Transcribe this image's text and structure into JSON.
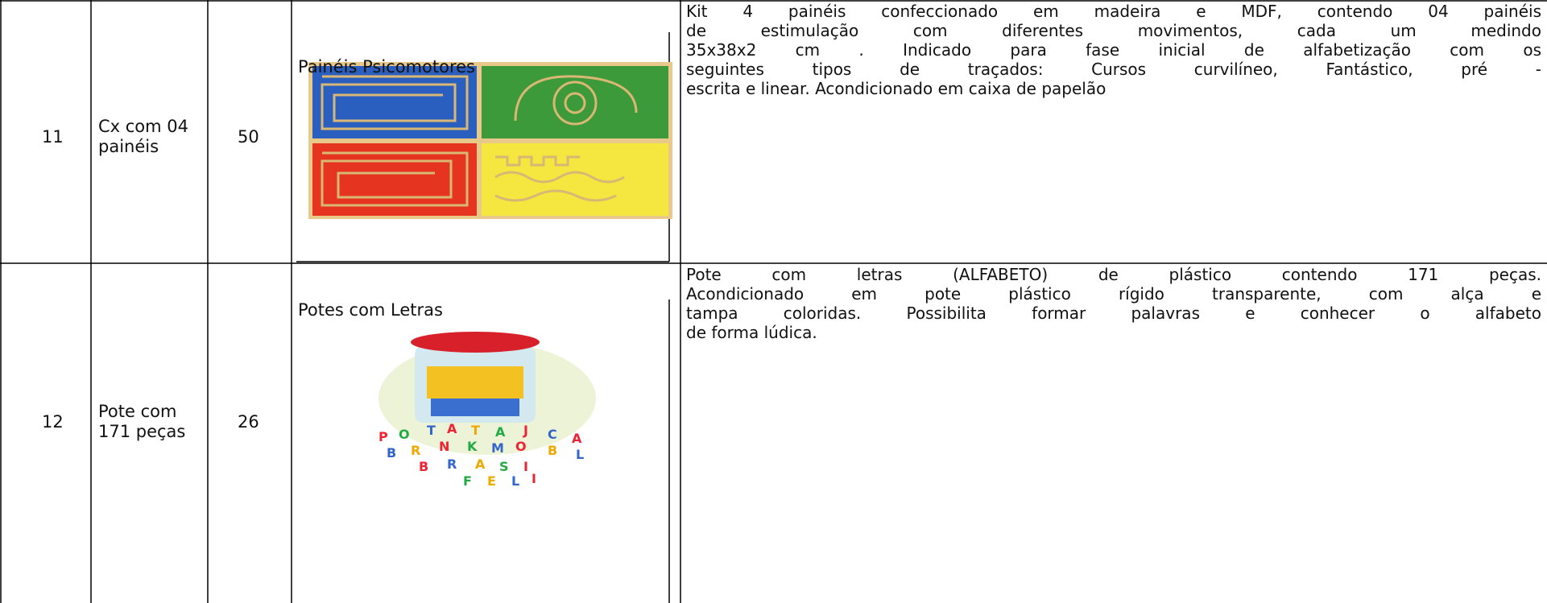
{
  "table": {
    "rows": [
      {
        "item": "11",
        "unit": [
          "Cx com 04",
          "painéis"
        ],
        "quantity": "50",
        "product": "Painéis Psicomotores",
        "description": [
          "Kit 4 painéis confeccionado em madeira e  MDF, contendo 04 painéis",
          "de estimulação com diferentes movimentos, cada um medindo",
          "35x38x2 cm . Indicado para fase inicial de alfabetização com os",
          "seguintes tipos de traçados:  Cursos curvilíneo, Fantástico, pré -",
          "escrita e linear. Acondicionado em caixa de papelão"
        ]
      },
      {
        "item": "12",
        "unit": [
          "Pote com",
          "171 peças"
        ],
        "quantity": "26",
        "product": "Potes com Letras",
        "description": [
          "Pote com letras (ALFABETO) de plástico contendo 171 peças.",
          "Acondicionado em pote plástico rígido transparente, com alça e",
          "tampa coloridas. Possibilita formar palavras e conhecer o alfabeto",
          "de forma lúdica."
        ]
      }
    ]
  }
}
